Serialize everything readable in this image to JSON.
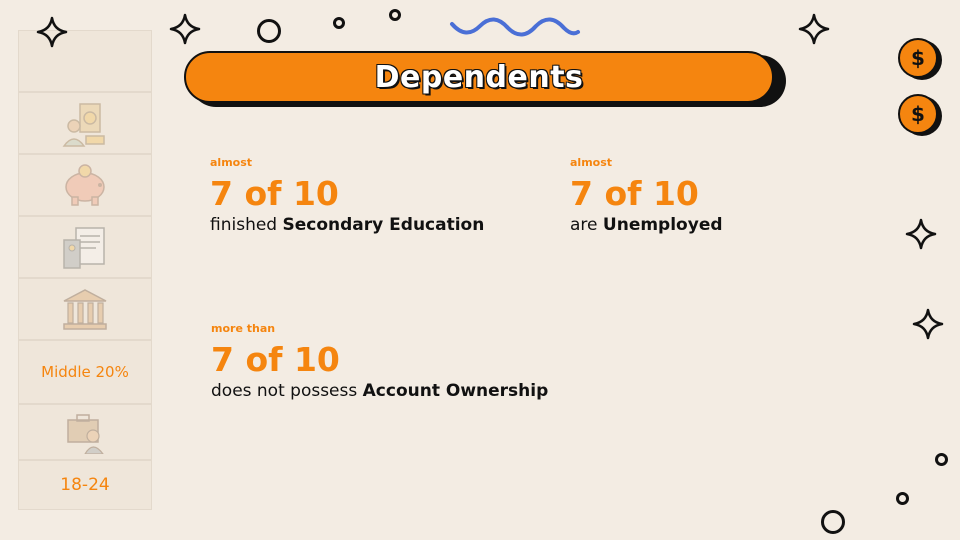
{
  "title": "Dependents",
  "sidebar": {
    "items": [
      {
        "icon": "blank-tile",
        "label": ""
      },
      {
        "icon": "money-savings-icon",
        "label": ""
      },
      {
        "icon": "piggy-bank-icon",
        "label": ""
      },
      {
        "icon": "calculator-document-icon",
        "label": ""
      },
      {
        "icon": "bank-building-icon",
        "label": ""
      },
      {
        "icon": "",
        "label": "Middle 20%"
      },
      {
        "icon": "worker-briefcase-icon",
        "label": ""
      },
      {
        "icon": "",
        "label": "18-24"
      }
    ]
  },
  "stats": [
    {
      "qualifier": "almost",
      "value": "7 of 10",
      "desc_prefix": "finished ",
      "desc_bold": "Secondary Education",
      "desc_suffix": ""
    },
    {
      "qualifier": "almost",
      "value": "7 of 10",
      "desc_prefix": "are ",
      "desc_bold": "Unemployed",
      "desc_suffix": ""
    },
    {
      "qualifier": "more than",
      "value": "7 of 10",
      "desc_prefix": "does not possess ",
      "desc_bold": "Account Ownership",
      "desc_suffix": ""
    }
  ],
  "coins": [
    {
      "symbol": "$"
    },
    {
      "symbol": "$"
    }
  ],
  "colors": {
    "accent": "#f5850f",
    "background": "#f3ece3",
    "ink": "#111111",
    "squiggle": "#4a6fd6"
  }
}
